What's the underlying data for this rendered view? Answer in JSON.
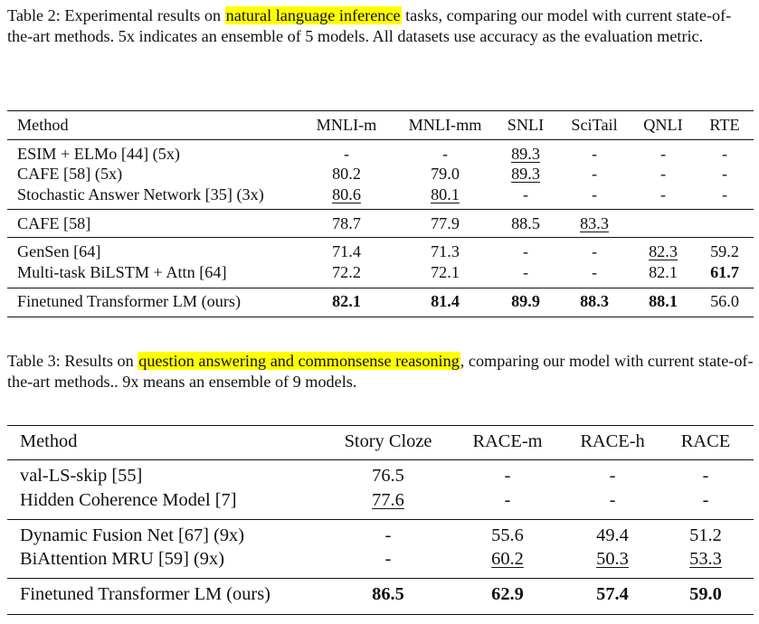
{
  "table2": {
    "caption": {
      "prefix": "Table 2: Experimental results on ",
      "highlight": "natural language inference",
      "suffix": " tasks, comparing our model with current state-of-the-art methods. 5x indicates an ensemble of 5 models. All datasets use accuracy as the evaluation metric."
    },
    "headers": [
      "Method",
      "MNLI-m",
      "MNLI-mm",
      "SNLI",
      "SciTail",
      "QNLI",
      "RTE"
    ],
    "groups": [
      [
        {
          "method": "ESIM + ELMo [44] (5x)",
          "cells": [
            {
              "v": "-"
            },
            {
              "v": "-"
            },
            {
              "v": "89.3",
              "u": true
            },
            {
              "v": "-"
            },
            {
              "v": "-"
            },
            {
              "v": "-"
            }
          ]
        },
        {
          "method": "CAFE [58] (5x)",
          "cells": [
            {
              "v": "80.2"
            },
            {
              "v": "79.0"
            },
            {
              "v": "89.3",
              "u": true
            },
            {
              "v": "-"
            },
            {
              "v": "-"
            },
            {
              "v": "-"
            }
          ]
        },
        {
          "method": "Stochastic Answer Network [35] (3x)",
          "cells": [
            {
              "v": "80.6",
              "u": true
            },
            {
              "v": "80.1",
              "u": true
            },
            {
              "v": "-"
            },
            {
              "v": "-"
            },
            {
              "v": "-"
            },
            {
              "v": "-"
            }
          ]
        }
      ],
      [
        {
          "method": "CAFE [58]",
          "cells": [
            {
              "v": "78.7"
            },
            {
              "v": "77.9"
            },
            {
              "v": "88.5"
            },
            {
              "v": "83.3",
              "u": true
            },
            {
              "v": ""
            },
            {
              "v": ""
            }
          ]
        }
      ],
      [
        {
          "method": "GenSen [64]",
          "cells": [
            {
              "v": "71.4"
            },
            {
              "v": "71.3"
            },
            {
              "v": "-"
            },
            {
              "v": "-"
            },
            {
              "v": "82.3",
              "u": true
            },
            {
              "v": "59.2"
            }
          ]
        },
        {
          "method": "Multi-task BiLSTM + Attn [64]",
          "cells": [
            {
              "v": "72.2"
            },
            {
              "v": "72.1"
            },
            {
              "v": "-"
            },
            {
              "v": "-"
            },
            {
              "v": "82.1"
            },
            {
              "v": "61.7",
              "b": true
            }
          ]
        }
      ],
      [
        {
          "method": "Finetuned Transformer LM (ours)",
          "cells": [
            {
              "v": "82.1",
              "b": true
            },
            {
              "v": "81.4",
              "b": true
            },
            {
              "v": "89.9",
              "b": true
            },
            {
              "v": "88.3",
              "b": true
            },
            {
              "v": "88.1",
              "b": true
            },
            {
              "v": "56.0"
            }
          ]
        }
      ]
    ]
  },
  "table3": {
    "caption": {
      "prefix": "Table 3: Results on ",
      "highlight": "question answering and commonsense reasoning",
      "suffix": ", comparing our model with current state-of-the-art methods.. 9x means an ensemble of 9 models."
    },
    "headers": [
      "Method",
      "Story Cloze",
      "RACE-m",
      "RACE-h",
      "RACE"
    ],
    "groups": [
      [
        {
          "method": "val-LS-skip [55]",
          "cells": [
            {
              "v": "76.5"
            },
            {
              "v": "-"
            },
            {
              "v": "-"
            },
            {
              "v": "-"
            }
          ]
        },
        {
          "method": "Hidden Coherence Model [7]",
          "cells": [
            {
              "v": "77.6",
              "u": true
            },
            {
              "v": "-"
            },
            {
              "v": "-"
            },
            {
              "v": "-"
            }
          ]
        }
      ],
      [
        {
          "method": "Dynamic Fusion Net [67] (9x)",
          "cells": [
            {
              "v": "-"
            },
            {
              "v": "55.6"
            },
            {
              "v": "49.4"
            },
            {
              "v": "51.2"
            }
          ]
        },
        {
          "method": "BiAttention MRU [59] (9x)",
          "cells": [
            {
              "v": "-"
            },
            {
              "v": "60.2",
              "u": true
            },
            {
              "v": "50.3",
              "u": true
            },
            {
              "v": "53.3",
              "u": true
            }
          ]
        }
      ],
      [
        {
          "method": "Finetuned Transformer LM (ours)",
          "cells": [
            {
              "v": "86.5",
              "b": true
            },
            {
              "v": "62.9",
              "b": true
            },
            {
              "v": "57.4",
              "b": true
            },
            {
              "v": "59.0",
              "b": true
            }
          ]
        }
      ]
    ]
  }
}
